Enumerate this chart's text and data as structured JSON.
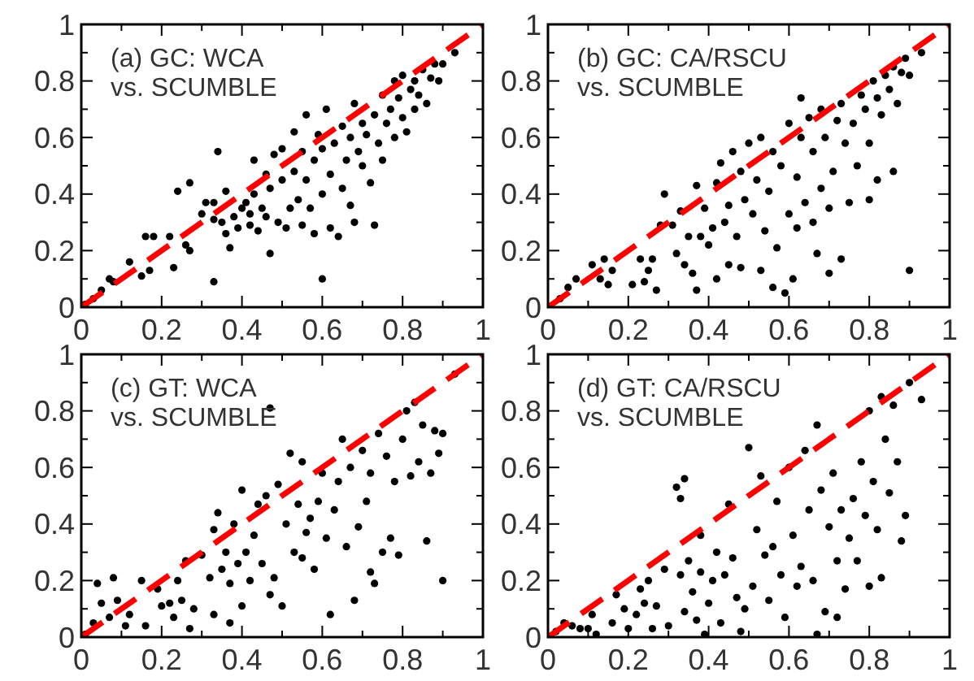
{
  "chart_data": [
    {
      "type": "scatter",
      "annotations": [
        "(a) GC: WCA\nvs. SCUMBLE"
      ],
      "xlim": [
        0,
        1
      ],
      "ylim": [
        0,
        1
      ],
      "xticks": [
        0,
        {
          "value": 0.1,
          "label": null
        },
        0.2,
        {
          "value": 0.3,
          "label": null
        },
        0.4,
        {
          "value": 0.5,
          "label": null
        },
        0.6,
        {
          "value": 0.7,
          "label": null
        },
        0.8,
        {
          "value": 0.9,
          "label": null
        },
        1
      ],
      "yticks": [
        0,
        {
          "value": 0.1,
          "label": null
        },
        0.2,
        {
          "value": 0.3,
          "label": null
        },
        0.4,
        {
          "value": 0.5,
          "label": null
        },
        0.6,
        {
          "value": 0.7,
          "label": null
        },
        0.8,
        {
          "value": 0.9,
          "label": null
        },
        1
      ],
      "series": [
        {
          "color": "#000000",
          "marker": "circle",
          "x": [
            0.01,
            0.03,
            0.05,
            0.07,
            0.08,
            0.12,
            0.15,
            0.16,
            0.17,
            0.18,
            0.22,
            0.23,
            0.24,
            0.27,
            0.26,
            0.27,
            0.3,
            0.31,
            0.33,
            0.33,
            0.34,
            0.33,
            0.35,
            0.36,
            0.36,
            0.37,
            0.38,
            0.39,
            0.4,
            0.41,
            0.42,
            0.42,
            0.43,
            0.43,
            0.44,
            0.45,
            0.46,
            0.46,
            0.47,
            0.47,
            0.48,
            0.49,
            0.5,
            0.5,
            0.51,
            0.52,
            0.53,
            0.53,
            0.54,
            0.55,
            0.55,
            0.56,
            0.56,
            0.57,
            0.58,
            0.58,
            0.59,
            0.6,
            0.6,
            0.6,
            0.61,
            0.62,
            0.62,
            0.63,
            0.64,
            0.65,
            0.65,
            0.66,
            0.67,
            0.67,
            0.68,
            0.68,
            0.69,
            0.7,
            0.7,
            0.71,
            0.72,
            0.73,
            0.73,
            0.74,
            0.75,
            0.75,
            0.76,
            0.77,
            0.78,
            0.78,
            0.79,
            0.8,
            0.8,
            0.81,
            0.82,
            0.83,
            0.83,
            0.84,
            0.85,
            0.86,
            0.87,
            0.88,
            0.89,
            0.9,
            0.93
          ],
          "values": [
            0.01,
            0.03,
            0.06,
            0.1,
            0.09,
            0.16,
            0.11,
            0.25,
            0.13,
            0.25,
            0.25,
            0.14,
            0.41,
            0.2,
            0.22,
            0.44,
            0.33,
            0.37,
            0.37,
            0.31,
            0.55,
            0.09,
            0.3,
            0.26,
            0.41,
            0.21,
            0.32,
            0.28,
            0.35,
            0.37,
            0.33,
            0.29,
            0.4,
            0.52,
            0.27,
            0.35,
            0.47,
            0.32,
            0.19,
            0.42,
            0.54,
            0.3,
            0.45,
            0.56,
            0.28,
            0.35,
            0.48,
            0.62,
            0.38,
            0.29,
            0.55,
            0.45,
            0.68,
            0.35,
            0.52,
            0.26,
            0.61,
            0.1,
            0.4,
            0.56,
            0.7,
            0.28,
            0.47,
            0.58,
            0.25,
            0.42,
            0.64,
            0.52,
            0.36,
            0.6,
            0.3,
            0.72,
            0.55,
            0.65,
            0.5,
            0.61,
            0.44,
            0.29,
            0.68,
            0.58,
            0.75,
            0.52,
            0.65,
            0.7,
            0.6,
            0.8,
            0.74,
            0.67,
            0.82,
            0.62,
            0.77,
            0.7,
            0.8,
            0.75,
            0.84,
            0.72,
            0.81,
            0.86,
            0.8,
            0.86,
            0.9
          ]
        },
        {
          "type": "line",
          "color": "#ff0000",
          "marker": "none",
          "line_style": "dashed",
          "x": [
            0,
            1
          ],
          "values": [
            0,
            1
          ]
        }
      ]
    },
    {
      "type": "scatter",
      "annotations": [
        "(b) GC: CA/RSCU\nvs. SCUMBLE"
      ],
      "xlim": [
        0,
        1
      ],
      "ylim": [
        0,
        1
      ],
      "xticks": [
        0,
        {
          "value": 0.1,
          "label": null
        },
        0.2,
        {
          "value": 0.3,
          "label": null
        },
        0.4,
        {
          "value": 0.5,
          "label": null
        },
        0.6,
        {
          "value": 0.7,
          "label": null
        },
        0.8,
        {
          "value": 0.9,
          "label": null
        },
        1
      ],
      "yticks": [
        0,
        {
          "value": 0.1,
          "label": null
        },
        0.2,
        {
          "value": 0.3,
          "label": null
        },
        0.4,
        {
          "value": 0.5,
          "label": null
        },
        0.6,
        {
          "value": 0.7,
          "label": null
        },
        0.8,
        {
          "value": 0.9,
          "label": null
        },
        1
      ],
      "series": [
        {
          "color": "#000000",
          "marker": "circle",
          "x": [
            0.03,
            0.05,
            0.07,
            0.11,
            0.13,
            0.14,
            0.15,
            0.16,
            0.21,
            0.23,
            0.24,
            0.25,
            0.26,
            0.27,
            0.28,
            0.29,
            0.31,
            0.32,
            0.33,
            0.34,
            0.35,
            0.36,
            0.37,
            0.37,
            0.38,
            0.39,
            0.4,
            0.41,
            0.42,
            0.42,
            0.43,
            0.44,
            0.45,
            0.45,
            0.46,
            0.47,
            0.48,
            0.48,
            0.49,
            0.5,
            0.51,
            0.52,
            0.53,
            0.53,
            0.54,
            0.55,
            0.56,
            0.56,
            0.57,
            0.58,
            0.59,
            0.6,
            0.6,
            0.61,
            0.62,
            0.62,
            0.63,
            0.63,
            0.64,
            0.65,
            0.66,
            0.66,
            0.67,
            0.68,
            0.68,
            0.69,
            0.7,
            0.7,
            0.71,
            0.72,
            0.73,
            0.73,
            0.74,
            0.75,
            0.76,
            0.77,
            0.78,
            0.79,
            0.8,
            0.8,
            0.81,
            0.82,
            0.82,
            0.83,
            0.84,
            0.85,
            0.86,
            0.86,
            0.87,
            0.88,
            0.89,
            0.9,
            0.9,
            0.93
          ],
          "values": [
            0.03,
            0.07,
            0.1,
            0.15,
            0.1,
            0.17,
            0.08,
            0.13,
            0.08,
            0.17,
            0.09,
            0.13,
            0.17,
            0.06,
            0.29,
            0.4,
            0.29,
            0.19,
            0.34,
            0.15,
            0.25,
            0.12,
            0.43,
            0.06,
            0.25,
            0.35,
            0.22,
            0.28,
            0.44,
            0.1,
            0.51,
            0.3,
            0.36,
            0.15,
            0.55,
            0.25,
            0.14,
            0.48,
            0.38,
            0.58,
            0.33,
            0.45,
            0.13,
            0.6,
            0.27,
            0.41,
            0.07,
            0.55,
            0.21,
            0.5,
            0.05,
            0.33,
            0.65,
            0.1,
            0.46,
            0.28,
            0.6,
            0.74,
            0.37,
            0.67,
            0.3,
            0.55,
            0.19,
            0.42,
            0.7,
            0.6,
            0.35,
            0.12,
            0.48,
            0.66,
            0.17,
            0.72,
            0.58,
            0.37,
            0.65,
            0.5,
            0.75,
            0.7,
            0.38,
            0.58,
            0.8,
            0.45,
            0.74,
            0.68,
            0.82,
            0.77,
            0.48,
            0.85,
            0.72,
            0.83,
            0.88,
            0.13,
            0.82,
            0.9
          ]
        },
        {
          "type": "line",
          "color": "#ff0000",
          "marker": "none",
          "line_style": "dashed",
          "x": [
            0,
            1
          ],
          "values": [
            0,
            1
          ]
        }
      ]
    },
    {
      "type": "scatter",
      "annotations": [
        "(c) GT: WCA\nvs. SCUMBLE"
      ],
      "xlim": [
        0,
        1
      ],
      "ylim": [
        0,
        1
      ],
      "xticks": [
        0,
        {
          "value": 0.1,
          "label": null
        },
        0.2,
        {
          "value": 0.3,
          "label": null
        },
        0.4,
        {
          "value": 0.5,
          "label": null
        },
        0.6,
        {
          "value": 0.7,
          "label": null
        },
        0.8,
        {
          "value": 0.9,
          "label": null
        },
        1
      ],
      "yticks": [
        0,
        {
          "value": 0.1,
          "label": null
        },
        0.2,
        {
          "value": 0.3,
          "label": null
        },
        0.4,
        {
          "value": 0.5,
          "label": null
        },
        0.6,
        {
          "value": 0.7,
          "label": null
        },
        0.8,
        {
          "value": 0.9,
          "label": null
        },
        1
      ],
      "series": [
        {
          "color": "#000000",
          "marker": "circle",
          "x": [
            0.01,
            0.03,
            0.04,
            0.05,
            0.07,
            0.08,
            0.09,
            0.11,
            0.12,
            0.15,
            0.16,
            0.19,
            0.2,
            0.22,
            0.23,
            0.24,
            0.25,
            0.26,
            0.27,
            0.28,
            0.3,
            0.32,
            0.33,
            0.33,
            0.34,
            0.35,
            0.36,
            0.37,
            0.37,
            0.38,
            0.39,
            0.4,
            0.4,
            0.41,
            0.42,
            0.43,
            0.44,
            0.45,
            0.46,
            0.47,
            0.47,
            0.48,
            0.49,
            0.5,
            0.51,
            0.52,
            0.53,
            0.54,
            0.55,
            0.55,
            0.56,
            0.57,
            0.58,
            0.59,
            0.6,
            0.61,
            0.62,
            0.63,
            0.64,
            0.65,
            0.66,
            0.67,
            0.68,
            0.69,
            0.7,
            0.71,
            0.72,
            0.72,
            0.73,
            0.74,
            0.75,
            0.76,
            0.77,
            0.78,
            0.79,
            0.8,
            0.81,
            0.82,
            0.83,
            0.84,
            0.85,
            0.86,
            0.87,
            0.88,
            0.89,
            0.9,
            0.9,
            0.93
          ],
          "values": [
            0.01,
            0.05,
            0.19,
            0.12,
            0.07,
            0.21,
            0.13,
            0.04,
            0.08,
            0.2,
            0.04,
            0.17,
            0.11,
            0.12,
            0.07,
            0.2,
            0.13,
            0.27,
            0.03,
            0.1,
            0.29,
            0.21,
            0.08,
            0.38,
            0.44,
            0.24,
            0.3,
            0.05,
            0.19,
            0.4,
            0.26,
            0.11,
            0.52,
            0.3,
            0.2,
            0.36,
            0.47,
            0.26,
            0.5,
            0.81,
            0.15,
            0.21,
            0.54,
            0.11,
            0.4,
            0.65,
            0.3,
            0.47,
            0.28,
            0.62,
            0.37,
            0.42,
            0.24,
            0.48,
            0.58,
            0.35,
            0.08,
            0.45,
            0.55,
            0.7,
            0.32,
            0.6,
            0.13,
            0.39,
            0.66,
            0.48,
            0.23,
            0.58,
            0.19,
            0.72,
            0.3,
            0.64,
            0.35,
            0.55,
            0.29,
            0.7,
            0.8,
            0.57,
            0.83,
            0.62,
            0.75,
            0.34,
            0.58,
            0.73,
            0.65,
            0.2,
            0.72,
            0.93
          ]
        },
        {
          "type": "line",
          "color": "#ff0000",
          "marker": "none",
          "line_style": "dashed",
          "x": [
            0,
            1
          ],
          "values": [
            0,
            1
          ]
        }
      ]
    },
    {
      "type": "scatter",
      "annotations": [
        "(d) GT: CA/RSCU\nvs. SCUMBLE"
      ],
      "xlim": [
        0,
        1
      ],
      "ylim": [
        0,
        1
      ],
      "xticks": [
        0,
        {
          "value": 0.1,
          "label": null
        },
        0.2,
        {
          "value": 0.3,
          "label": null
        },
        0.4,
        {
          "value": 0.5,
          "label": null
        },
        0.6,
        {
          "value": 0.7,
          "label": null
        },
        0.8,
        {
          "value": 0.9,
          "label": null
        },
        1
      ],
      "yticks": [
        0,
        {
          "value": 0.1,
          "label": null
        },
        0.2,
        {
          "value": 0.3,
          "label": null
        },
        0.4,
        {
          "value": 0.5,
          "label": null
        },
        0.6,
        {
          "value": 0.7,
          "label": null
        },
        0.8,
        {
          "value": 0.9,
          "label": null
        },
        1
      ],
      "series": [
        {
          "color": "#000000",
          "marker": "circle",
          "x": [
            0.02,
            0.04,
            0.06,
            0.08,
            0.1,
            0.11,
            0.12,
            0.16,
            0.17,
            0.19,
            0.2,
            0.22,
            0.23,
            0.24,
            0.25,
            0.26,
            0.27,
            0.29,
            0.3,
            0.32,
            0.33,
            0.33,
            0.34,
            0.34,
            0.35,
            0.36,
            0.37,
            0.38,
            0.38,
            0.39,
            0.4,
            0.41,
            0.42,
            0.43,
            0.44,
            0.45,
            0.46,
            0.47,
            0.48,
            0.49,
            0.5,
            0.51,
            0.52,
            0.53,
            0.54,
            0.55,
            0.56,
            0.57,
            0.58,
            0.59,
            0.6,
            0.61,
            0.62,
            0.63,
            0.64,
            0.65,
            0.66,
            0.67,
            0.67,
            0.68,
            0.69,
            0.7,
            0.71,
            0.72,
            0.72,
            0.73,
            0.74,
            0.75,
            0.76,
            0.77,
            0.78,
            0.79,
            0.8,
            0.8,
            0.81,
            0.82,
            0.83,
            0.83,
            0.84,
            0.85,
            0.86,
            0.87,
            0.88,
            0.89,
            0.9,
            0.93
          ],
          "values": [
            0.02,
            0.05,
            0.04,
            0.03,
            0.03,
            0.08,
            0.01,
            0.05,
            0.15,
            0.1,
            0.03,
            0.08,
            0.17,
            0.12,
            0.2,
            0.03,
            0.11,
            0.24,
            0.04,
            0.53,
            0.49,
            0.22,
            0.56,
            0.09,
            0.27,
            0.16,
            0.06,
            0.23,
            0.36,
            0.01,
            0.12,
            0.2,
            0.3,
            0.05,
            0.22,
            0.47,
            0.28,
            0.14,
            0.02,
            0.1,
            0.67,
            0.18,
            0.38,
            0.57,
            0.29,
            0.13,
            0.32,
            0.48,
            0.22,
            0.07,
            0.6,
            0.36,
            0.18,
            0.25,
            0.66,
            0.45,
            0.2,
            0.75,
            0.01,
            0.52,
            0.09,
            0.39,
            0.58,
            0.27,
            0.07,
            0.45,
            0.17,
            0.35,
            0.49,
            0.27,
            0.62,
            0.43,
            0.18,
            0.8,
            0.55,
            0.38,
            0.85,
            0.21,
            0.7,
            0.51,
            0.82,
            0.62,
            0.34,
            0.43,
            0.9,
            0.84
          ]
        },
        {
          "type": "line",
          "color": "#ff0000",
          "marker": "none",
          "line_style": "dashed",
          "x": [
            0,
            1
          ],
          "values": [
            0,
            1
          ]
        }
      ]
    }
  ]
}
